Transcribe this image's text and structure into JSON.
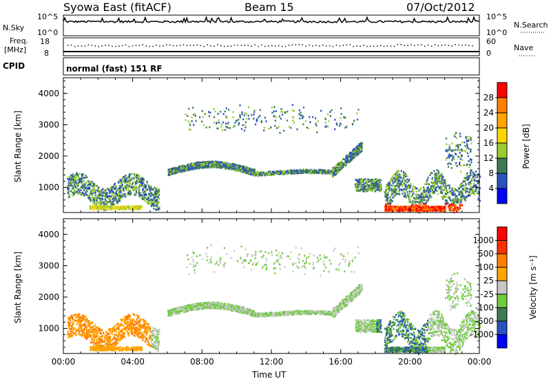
{
  "header": {
    "title_left": "Syowa East (fitACF)",
    "title_center": "Beam 15",
    "title_right": "07/Oct/2012"
  },
  "panels": {
    "nsky": {
      "label": "N.Sky",
      "left_ticks": [
        "10^5",
        "10^0"
      ],
      "right_ticks": [
        "10^5",
        "10^0"
      ],
      "right_label": "N.Search"
    },
    "freq": {
      "label_line1": "Freq.",
      "label_line2": "[MHz]",
      "left_ticks": [
        "18",
        "8"
      ],
      "right_ticks": [
        "60",
        "0"
      ],
      "right_label": "Nave"
    },
    "cpid": {
      "label": "CPID",
      "text": "normal (fast) 151 RF"
    }
  },
  "chart_data": [
    {
      "type": "heatmap",
      "title": "",
      "ylabel": "Slant Range [km]",
      "xlabel": "",
      "ylim": [
        200,
        4500
      ],
      "yticks": [
        1000,
        2000,
        3000,
        4000
      ],
      "xlim_hours": [
        0,
        24
      ],
      "colorbar": {
        "label": "Power [dB]",
        "ticks": [
          "4",
          "8",
          "12",
          "16",
          "20",
          "24",
          "28"
        ],
        "colors": [
          "#0000ff",
          "#2a52be",
          "#3c7a55",
          "#9acd32",
          "#ffd700",
          "#ffa500",
          "#ff7f00",
          "#ff0000"
        ]
      }
    },
    {
      "type": "heatmap",
      "title": "",
      "ylabel": "Slant Range [km]",
      "xlabel": "Time UT",
      "ylim": [
        200,
        4500
      ],
      "yticks": [
        1000,
        2000,
        3000,
        4000
      ],
      "xticks": [
        "00:00",
        "04:00",
        "08:00",
        "12:00",
        "16:00",
        "20:00",
        "00:00"
      ],
      "colorbar": {
        "label": "Velocity [m s⁻¹]",
        "ticks": [
          "1000",
          "500",
          "100",
          "25",
          "-25",
          "-100",
          "-500",
          "-1000"
        ],
        "colors": [
          "#0000ff",
          "#2a52be",
          "#3c7a55",
          "#6ecb3c",
          "#c8c8c8",
          "#ffa500",
          "#ff7f00",
          "#ff3000",
          "#ff0000"
        ]
      }
    }
  ]
}
